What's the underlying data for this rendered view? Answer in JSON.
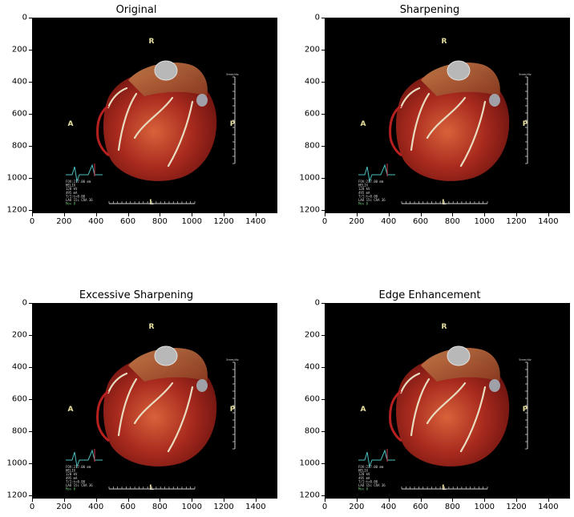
{
  "panels": [
    {
      "title": "Original"
    },
    {
      "title": "Sharpening"
    },
    {
      "title": "Excessive Sharpening"
    },
    {
      "title": "Edge Enhancement"
    }
  ],
  "axes": {
    "x_ticks": [
      "0",
      "200",
      "400",
      "600",
      "800",
      "1000",
      "1200",
      "1400"
    ],
    "y_ticks": [
      "0",
      "200",
      "400",
      "600",
      "800",
      "1000",
      "1200"
    ]
  },
  "image_overlay": {
    "label_top": "R",
    "label_left": "A",
    "label_right": "P",
    "label_bottom": "L",
    "scale_label": "5mm/div",
    "info_lines": [
      "FOV:217.00 mm",
      "HELIX",
      "120 kV",
      "495 mA",
      "T/I:t=0.00",
      "LAO 15c CRA 36",
      "Mov 8"
    ]
  },
  "colors": {
    "background": "#ffffff",
    "image_bg": "#000000",
    "tissue_dark": "#6e1410",
    "tissue_mid": "#a82a1e",
    "tissue_light": "#d9623a",
    "vessel": "#e8dcc0",
    "label": "#e8e0a0"
  }
}
